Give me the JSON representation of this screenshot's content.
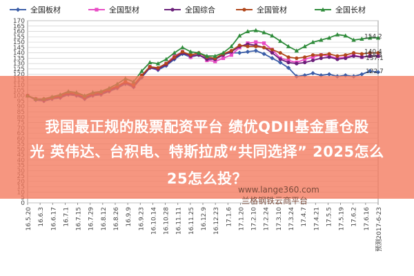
{
  "chart_data": {
    "type": "line",
    "ylim": [
      0,
      170
    ],
    "yticks": [
      0,
      5,
      10,
      15,
      20,
      25,
      30,
      35,
      40,
      45,
      50,
      55,
      60,
      65,
      70,
      75,
      80,
      85,
      90,
      95,
      100,
      105,
      110,
      115,
      120,
      125,
      130,
      135,
      140,
      145,
      150,
      155,
      160,
      165,
      170
    ],
    "grid": true,
    "legend_position": "top",
    "x_tick_labels": [
      "16.5.20",
      "16.6.3",
      "16.6.17",
      "16.7.1",
      "16.7.15",
      "16.7.29",
      "16.8.12",
      "16.8.26",
      "16.9.9",
      "16.9.23",
      "16.10.14",
      "16.10.28",
      "16.11.11",
      "16.11.25",
      "16.12.9",
      "16.12.23",
      "17.1.6",
      "17.1.20",
      "17.2.10",
      "17.2.24",
      "17.3.10",
      "17.3.24",
      "17.4.7",
      "17.4.21",
      "17.5.5",
      "17.5.19",
      "17.6.2",
      "17.6.16",
      "预测2017-6-23"
    ],
    "series": [
      {
        "name": "全国板材",
        "color": "#3b5ea8",
        "marker": "diamond",
        "values": [
          100,
          96,
          95,
          97,
          98,
          101,
          100,
          97,
          100,
          101,
          104,
          107,
          111,
          108,
          117,
          126,
          124,
          128,
          134,
          139,
          136,
          138,
          135,
          134,
          139,
          140,
          140,
          141,
          142,
          139,
          135,
          131,
          126,
          118,
          119,
          121,
          119,
          120,
          118,
          119,
          118,
          120,
          123,
          122
        ]
      },
      {
        "name": "全国型材",
        "color": "#e84bc4",
        "marker": "square",
        "values": [
          100,
          97,
          96,
          98,
          99,
          102,
          101,
          98,
          101,
          102,
          105,
          108,
          112,
          109,
          119,
          127,
          125,
          130,
          137,
          141,
          136,
          139,
          133,
          132,
          135,
          138,
          145,
          149,
          150,
          149,
          143,
          135,
          133,
          131,
          134,
          136,
          138,
          137,
          135,
          136,
          138,
          136,
          137,
          137
        ]
      },
      {
        "name": "全国综合",
        "color": "#6a1f79",
        "marker": "circle",
        "values": [
          100,
          97,
          96,
          98,
          99,
          102,
          101,
          98,
          101,
          102,
          105,
          108,
          112,
          109,
          118,
          126,
          125,
          129,
          135,
          140,
          137,
          138,
          134,
          134,
          138,
          141,
          146,
          148,
          147,
          145,
          140,
          134,
          131,
          130,
          131,
          133,
          135,
          136,
          134,
          135,
          137,
          136,
          137,
          137
        ]
      },
      {
        "name": "全国管材",
        "color": "#b0461a",
        "marker": "circle",
        "values": [
          100,
          97,
          97,
          98,
          100,
          103,
          102,
          99,
          102,
          103,
          106,
          109,
          113,
          110,
          119,
          127,
          126,
          130,
          136,
          141,
          138,
          140,
          136,
          135,
          139,
          142,
          147,
          146,
          146,
          145,
          143,
          140,
          136,
          135,
          136,
          138,
          138,
          139,
          137,
          138,
          140,
          139,
          140,
          140
        ]
      },
      {
        "name": "全国长材",
        "color": "#2e8b3a",
        "marker": "triangle",
        "values": [
          100,
          97,
          97,
          99,
          101,
          104,
          103,
          100,
          103,
          104,
          107,
          111,
          116,
          113,
          123,
          131,
          130,
          134,
          140,
          145,
          141,
          140,
          137,
          137,
          140,
          146,
          156,
          160,
          161,
          159,
          156,
          151,
          146,
          142,
          146,
          150,
          152,
          154,
          157,
          156,
          152,
          153,
          154,
          154
        ]
      }
    ],
    "annotations": [
      "154.2",
      "140.4",
      "138.3",
      "137.1",
      "122.7"
    ]
  },
  "banner": {
    "line1": "我国最正规的股票配资平台 绩优QDII基金重仓股",
    "line2": "光 英伟达、台积电、特斯拉成“共同选择” 2025怎么",
    "line3": "25怎么投？"
  },
  "watermark": {
    "url": "www.lange360.com",
    "name": "兰格钢铁云商平台"
  },
  "colors": {
    "banner": "#f4785c",
    "grid": "#cfcfcf",
    "axis": "#444444"
  }
}
